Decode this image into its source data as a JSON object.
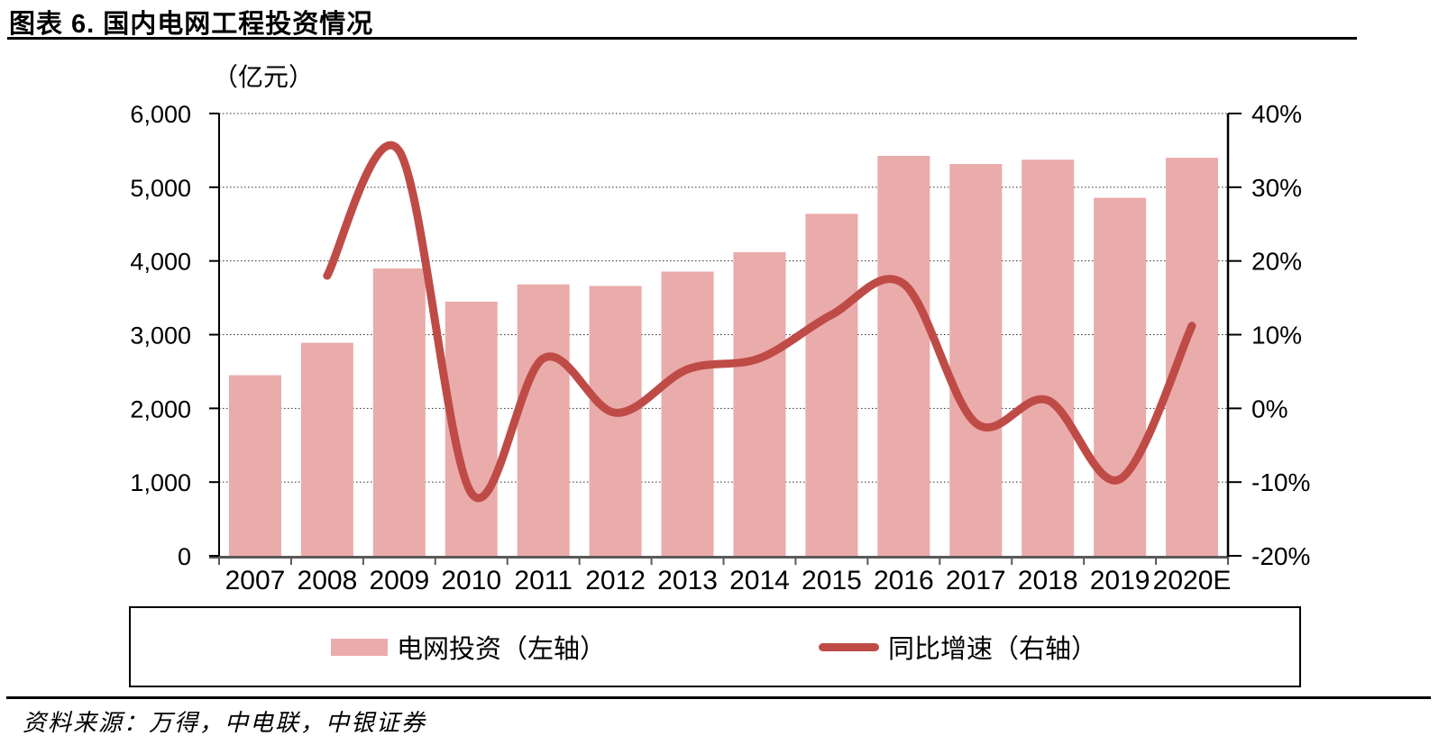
{
  "page": {
    "title": "图表 6. 国内电网工程投资情况",
    "source": "资料来源：万得，中电联，中银证券"
  },
  "chart_data": {
    "type": "combo",
    "categories": [
      "2007",
      "2008",
      "2009",
      "2010",
      "2011",
      "2012",
      "2013",
      "2014",
      "2015",
      "2016",
      "2017",
      "2018",
      "2019",
      "2020E"
    ],
    "series": [
      {
        "name": "电网投资（左轴）",
        "type": "bar",
        "axis": "left",
        "values": [
          2450,
          2890,
          3898,
          3448,
          3682,
          3661,
          3856,
          4119,
          4640,
          5426,
          5315,
          5373,
          4856,
          5400
        ]
      },
      {
        "name": "同比增速（右轴）",
        "type": "line",
        "axis": "right",
        "values_pct": [
          null,
          18,
          34.9,
          -11.5,
          6.8,
          -0.6,
          5.3,
          6.8,
          12.7,
          16.9,
          -2.0,
          1.1,
          -9.6,
          11.2
        ]
      }
    ],
    "left_axis": {
      "title": "（亿元）",
      "min": 0,
      "max": 6000,
      "step": 1000,
      "tick_labels": [
        "0",
        "1,000",
        "2,000",
        "3,000",
        "4,000",
        "5,000",
        "6,000"
      ]
    },
    "right_axis": {
      "min": -20,
      "max": 40,
      "step": 10,
      "tick_labels": [
        "-20%",
        "-10%",
        "0%",
        "10%",
        "20%",
        "30%",
        "40%"
      ]
    },
    "grid": "horizontal-dotted",
    "legend_position": "bottom"
  },
  "colors": {
    "bar": "#EAABAB",
    "line": "#BF4B47",
    "axis": "#000000",
    "x_axis": "#595959",
    "grid": "#2B2B2B"
  }
}
